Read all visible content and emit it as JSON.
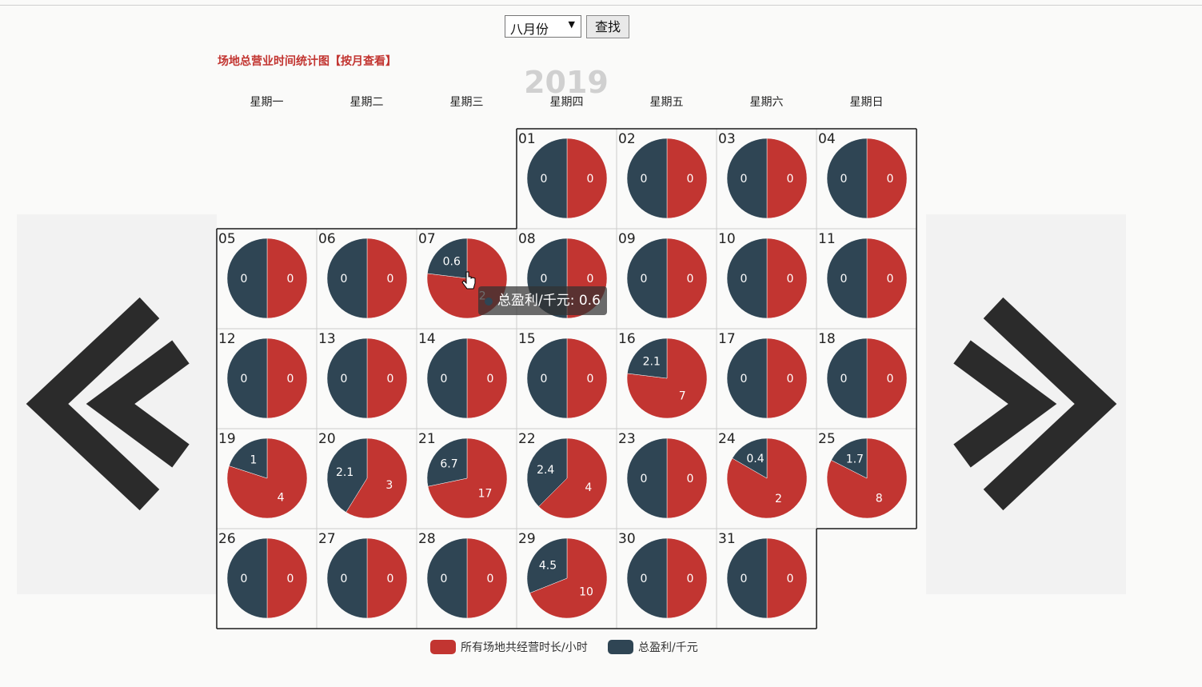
{
  "controls": {
    "month_select": {
      "selected": "八月份"
    },
    "search_button": "查找"
  },
  "chart_title": "场地总营业时间统计图【按月查看】",
  "tooltip": {
    "label": "总盈利/千元: 0.6"
  },
  "colors": {
    "hours": "#c23531",
    "profit": "#2f4554",
    "cursor_bg": "#ffffff"
  },
  "icons": {
    "prev": "double-chevron-left-icon",
    "next": "double-chevron-right-icon"
  },
  "chart_data": {
    "type": "calendar-pie",
    "year": "2019",
    "month": 8,
    "weekdays": [
      "星期一",
      "星期二",
      "星期三",
      "星期四",
      "星期五",
      "星期六",
      "星期日"
    ],
    "series": [
      {
        "name": "所有场地共经营时长/小时",
        "color": "#c23531"
      },
      {
        "name": "总盈利/千元",
        "color": "#2f4554"
      }
    ],
    "days": [
      {
        "day": "01",
        "hours": 0,
        "profit": 0
      },
      {
        "day": "02",
        "hours": 0,
        "profit": 0
      },
      {
        "day": "03",
        "hours": 0,
        "profit": 0
      },
      {
        "day": "04",
        "hours": 0,
        "profit": 0
      },
      {
        "day": "05",
        "hours": 0,
        "profit": 0
      },
      {
        "day": "06",
        "hours": 0,
        "profit": 0
      },
      {
        "day": "07",
        "hours": 2,
        "profit": 0.6
      },
      {
        "day": "08",
        "hours": 0,
        "profit": 0
      },
      {
        "day": "09",
        "hours": 0,
        "profit": 0
      },
      {
        "day": "10",
        "hours": 0,
        "profit": 0
      },
      {
        "day": "11",
        "hours": 0,
        "profit": 0
      },
      {
        "day": "12",
        "hours": 0,
        "profit": 0
      },
      {
        "day": "13",
        "hours": 0,
        "profit": 0
      },
      {
        "day": "14",
        "hours": 0,
        "profit": 0
      },
      {
        "day": "15",
        "hours": 0,
        "profit": 0
      },
      {
        "day": "16",
        "hours": 7,
        "profit": 2.1
      },
      {
        "day": "17",
        "hours": 0,
        "profit": 0
      },
      {
        "day": "18",
        "hours": 0,
        "profit": 0
      },
      {
        "day": "19",
        "hours": 4,
        "profit": 1
      },
      {
        "day": "20",
        "hours": 3,
        "profit": 2.1
      },
      {
        "day": "21",
        "hours": 17,
        "profit": 6.7
      },
      {
        "day": "22",
        "hours": 4,
        "profit": 2.4
      },
      {
        "day": "23",
        "hours": 0,
        "profit": 0
      },
      {
        "day": "24",
        "hours": 2,
        "profit": 0.4
      },
      {
        "day": "25",
        "hours": 8,
        "profit": 1.7
      },
      {
        "day": "26",
        "hours": 0,
        "profit": 0
      },
      {
        "day": "27",
        "hours": 0,
        "profit": 0
      },
      {
        "day": "28",
        "hours": 0,
        "profit": 0
      },
      {
        "day": "29",
        "hours": 10,
        "profit": 4.5
      },
      {
        "day": "30",
        "hours": 0,
        "profit": 0
      },
      {
        "day": "31",
        "hours": 0,
        "profit": 0
      }
    ]
  }
}
